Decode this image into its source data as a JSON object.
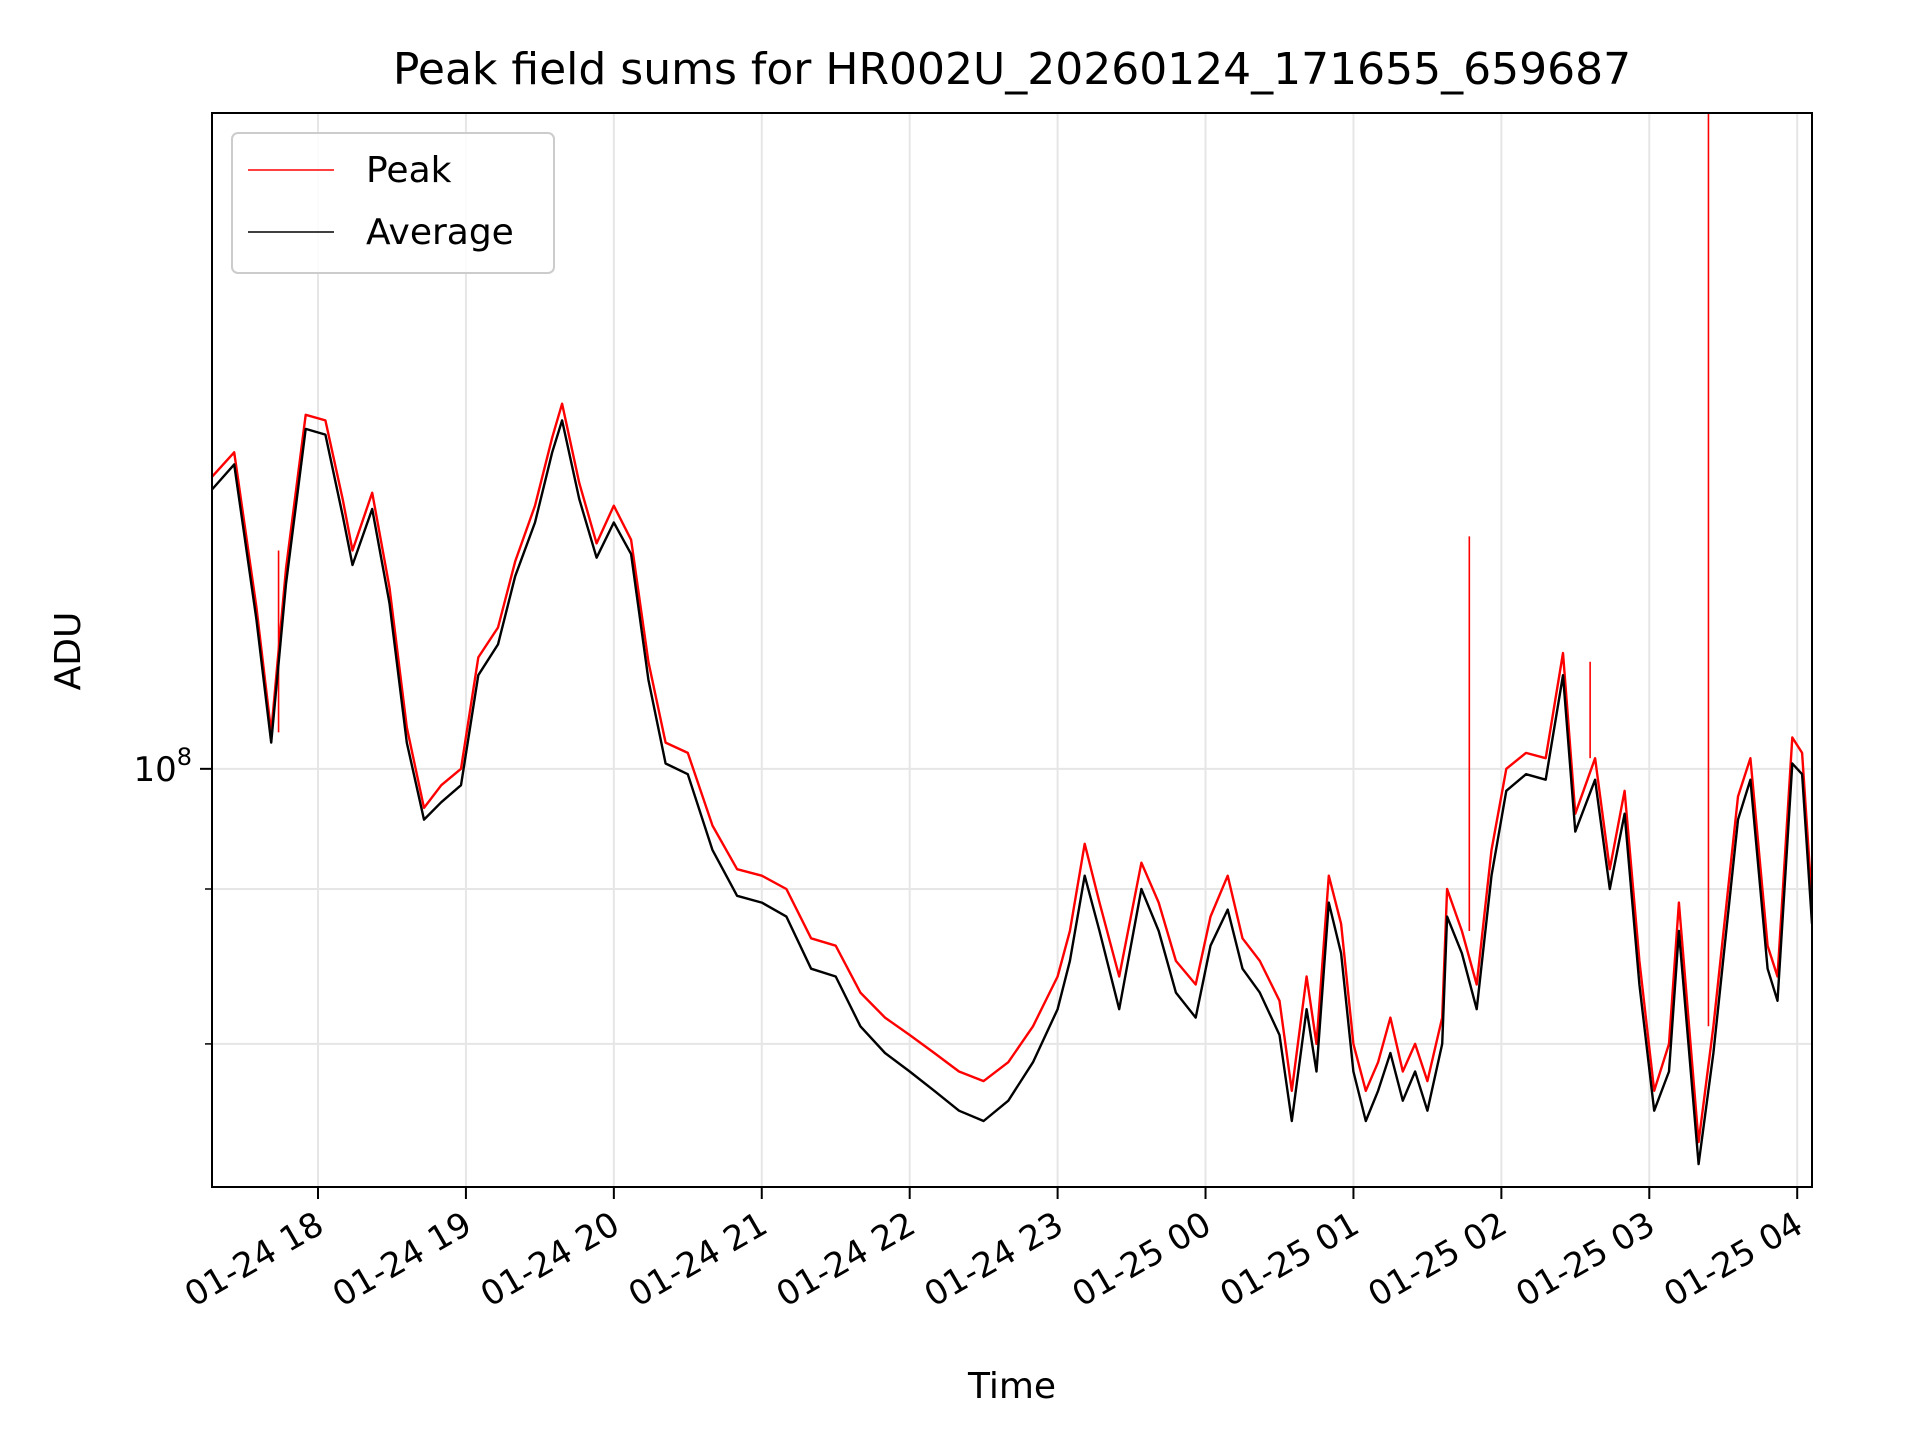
{
  "chart_data": {
    "type": "line",
    "title": "Peak field sums for HR002U_20260124_171655_659687",
    "xlabel": "Time",
    "ylabel": "ADU",
    "y_scale": "log",
    "grid": true,
    "legend_position": "top-left",
    "colors": {
      "peak": "#ff0000",
      "average": "#000000",
      "grid": "#e6e6e6"
    },
    "xlim": [
      "2026-01-24 17:17",
      "2026-01-25 04:06"
    ],
    "ylim": [
      46000000,
      338000000
    ],
    "x_ticks": [
      {
        "t": "2026-01-24 18:00",
        "label": "01-24 18"
      },
      {
        "t": "2026-01-24 19:00",
        "label": "01-24 19"
      },
      {
        "t": "2026-01-24 20:00",
        "label": "01-24 20"
      },
      {
        "t": "2026-01-24 21:00",
        "label": "01-24 21"
      },
      {
        "t": "2026-01-24 22:00",
        "label": "01-24 22"
      },
      {
        "t": "2026-01-24 23:00",
        "label": "01-24 23"
      },
      {
        "t": "2026-01-25 00:00",
        "label": "01-25 00"
      },
      {
        "t": "2026-01-25 01:00",
        "label": "01-25 01"
      },
      {
        "t": "2026-01-25 02:00",
        "label": "01-25 02"
      },
      {
        "t": "2026-01-25 03:00",
        "label": "01-25 03"
      },
      {
        "t": "2026-01-25 04:00",
        "label": "01-25 04"
      }
    ],
    "y_major_ticks": [
      {
        "value": 100000000,
        "label": "10",
        "exponent": "8"
      }
    ],
    "y_minor_ticks": [
      80000000,
      60000000
    ],
    "series": [
      {
        "name": "Peak",
        "color": "#ff0000",
        "points": [
          [
            "2026-01-24 17:17",
            172000000
          ],
          [
            "2026-01-24 17:26",
            180000000
          ],
          [
            "2026-01-24 17:35",
            135000000
          ],
          [
            "2026-01-24 17:41",
            107000000
          ],
          [
            "2026-01-24 17:47",
            145000000
          ],
          [
            "2026-01-24 17:55",
            193000000
          ],
          [
            "2026-01-24 18:03",
            191000000
          ],
          [
            "2026-01-24 18:10",
            165000000
          ],
          [
            "2026-01-24 18:14",
            150000000
          ],
          [
            "2026-01-24 18:22",
            167000000
          ],
          [
            "2026-01-24 18:29",
            140000000
          ],
          [
            "2026-01-24 18:36",
            108000000
          ],
          [
            "2026-01-24 18:43",
            93000000
          ],
          [
            "2026-01-24 18:50",
            97000000
          ],
          [
            "2026-01-24 18:58",
            100000000
          ],
          [
            "2026-01-24 19:05",
            123000000
          ],
          [
            "2026-01-24 19:13",
            130000000
          ],
          [
            "2026-01-24 19:20",
            147000000
          ],
          [
            "2026-01-24 19:28",
            163000000
          ],
          [
            "2026-01-24 19:35",
            185000000
          ],
          [
            "2026-01-24 19:39",
            197000000
          ],
          [
            "2026-01-24 19:46",
            170000000
          ],
          [
            "2026-01-24 19:53",
            152000000
          ],
          [
            "2026-01-24 20:00",
            163000000
          ],
          [
            "2026-01-24 20:07",
            153000000
          ],
          [
            "2026-01-24 20:14",
            122000000
          ],
          [
            "2026-01-24 20:21",
            105000000
          ],
          [
            "2026-01-24 20:30",
            103000000
          ],
          [
            "2026-01-24 20:40",
            90000000
          ],
          [
            "2026-01-24 20:50",
            83000000
          ],
          [
            "2026-01-24 21:00",
            82000000
          ],
          [
            "2026-01-24 21:10",
            80000000
          ],
          [
            "2026-01-24 21:20",
            73000000
          ],
          [
            "2026-01-24 21:30",
            72000000
          ],
          [
            "2026-01-24 21:40",
            66000000
          ],
          [
            "2026-01-24 21:50",
            63000000
          ],
          [
            "2026-01-24 22:00",
            61000000
          ],
          [
            "2026-01-24 22:10",
            59000000
          ],
          [
            "2026-01-24 22:20",
            57000000
          ],
          [
            "2026-01-24 22:30",
            56000000
          ],
          [
            "2026-01-24 22:40",
            58000000
          ],
          [
            "2026-01-24 22:50",
            62000000
          ],
          [
            "2026-01-24 23:00",
            68000000
          ],
          [
            "2026-01-24 23:05",
            74000000
          ],
          [
            "2026-01-24 23:11",
            87000000
          ],
          [
            "2026-01-24 23:17",
            78000000
          ],
          [
            "2026-01-24 23:25",
            68000000
          ],
          [
            "2026-01-24 23:34",
            84000000
          ],
          [
            "2026-01-24 23:41",
            78000000
          ],
          [
            "2026-01-24 23:48",
            70000000
          ],
          [
            "2026-01-24 23:56",
            67000000
          ],
          [
            "2026-01-25 00:02",
            76000000
          ],
          [
            "2026-01-25 00:09",
            82000000
          ],
          [
            "2026-01-25 00:15",
            73000000
          ],
          [
            "2026-01-25 00:22",
            70000000
          ],
          [
            "2026-01-25 00:30",
            65000000
          ],
          [
            "2026-01-25 00:35",
            55000000
          ],
          [
            "2026-01-25 00:41",
            68000000
          ],
          [
            "2026-01-25 00:45",
            60000000
          ],
          [
            "2026-01-25 00:50",
            82000000
          ],
          [
            "2026-01-25 00:55",
            75000000
          ],
          [
            "2026-01-25 01:00",
            60000000
          ],
          [
            "2026-01-25 01:05",
            55000000
          ],
          [
            "2026-01-25 01:10",
            58000000
          ],
          [
            "2026-01-25 01:15",
            63000000
          ],
          [
            "2026-01-25 01:20",
            57000000
          ],
          [
            "2026-01-25 01:25",
            60000000
          ],
          [
            "2026-01-25 01:30",
            56000000
          ],
          [
            "2026-01-25 01:36",
            63000000
          ],
          [
            "2026-01-25 01:38",
            80000000
          ],
          [
            "2026-01-25 01:44",
            74000000
          ],
          [
            "2026-01-25 01:50",
            67000000
          ],
          [
            "2026-01-25 01:56",
            86000000
          ],
          [
            "2026-01-25 02:02",
            100000000
          ],
          [
            "2026-01-25 02:10",
            103000000
          ],
          [
            "2026-01-25 02:18",
            102000000
          ],
          [
            "2026-01-25 02:25",
            124000000
          ],
          [
            "2026-01-25 02:30",
            92000000
          ],
          [
            "2026-01-25 02:38",
            102000000
          ],
          [
            "2026-01-25 02:44",
            83000000
          ],
          [
            "2026-01-25 02:50",
            96000000
          ],
          [
            "2026-01-25 02:56",
            70000000
          ],
          [
            "2026-01-25 03:02",
            55000000
          ],
          [
            "2026-01-25 03:08",
            60000000
          ],
          [
            "2026-01-25 03:12",
            78000000
          ],
          [
            "2026-01-25 03:20",
            50000000
          ],
          [
            "2026-01-25 03:26",
            62000000
          ],
          [
            "2026-01-25 03:36",
            95000000
          ],
          [
            "2026-01-25 03:41",
            102000000
          ],
          [
            "2026-01-25 03:48",
            72000000
          ],
          [
            "2026-01-25 03:52",
            68000000
          ],
          [
            "2026-01-25 03:58",
            106000000
          ],
          [
            "2026-01-25 04:02",
            103000000
          ],
          [
            "2026-01-25 04:06",
            78000000
          ]
        ],
        "spikes": [
          [
            "2026-01-24 17:44",
            150000000
          ],
          [
            "2026-01-25 01:47",
            154000000
          ],
          [
            "2026-01-25 02:36",
            122000000
          ],
          [
            "2026-01-25 03:24",
            338000000
          ]
        ]
      },
      {
        "name": "Average",
        "color": "#000000",
        "points": [
          [
            "2026-01-24 17:17",
            168000000
          ],
          [
            "2026-01-24 17:26",
            176000000
          ],
          [
            "2026-01-24 17:35",
            132000000
          ],
          [
            "2026-01-24 17:41",
            105000000
          ],
          [
            "2026-01-24 17:47",
            141000000
          ],
          [
            "2026-01-24 17:55",
            188000000
          ],
          [
            "2026-01-24 18:03",
            186000000
          ],
          [
            "2026-01-24 18:10",
            160000000
          ],
          [
            "2026-01-24 18:14",
            146000000
          ],
          [
            "2026-01-24 18:22",
            162000000
          ],
          [
            "2026-01-24 18:29",
            136000000
          ],
          [
            "2026-01-24 18:36",
            105000000
          ],
          [
            "2026-01-24 18:43",
            91000000
          ],
          [
            "2026-01-24 18:50",
            94000000
          ],
          [
            "2026-01-24 18:58",
            97000000
          ],
          [
            "2026-01-24 19:05",
            119000000
          ],
          [
            "2026-01-24 19:13",
            126000000
          ],
          [
            "2026-01-24 19:20",
            143000000
          ],
          [
            "2026-01-24 19:28",
            158000000
          ],
          [
            "2026-01-24 19:35",
            180000000
          ],
          [
            "2026-01-24 19:39",
            191000000
          ],
          [
            "2026-01-24 19:46",
            165000000
          ],
          [
            "2026-01-24 19:53",
            148000000
          ],
          [
            "2026-01-24 20:00",
            158000000
          ],
          [
            "2026-01-24 20:07",
            149000000
          ],
          [
            "2026-01-24 20:14",
            118000000
          ],
          [
            "2026-01-24 20:21",
            101000000
          ],
          [
            "2026-01-24 20:30",
            99000000
          ],
          [
            "2026-01-24 20:40",
            86000000
          ],
          [
            "2026-01-24 20:50",
            79000000
          ],
          [
            "2026-01-24 21:00",
            78000000
          ],
          [
            "2026-01-24 21:10",
            76000000
          ],
          [
            "2026-01-24 21:20",
            69000000
          ],
          [
            "2026-01-24 21:30",
            68000000
          ],
          [
            "2026-01-24 21:40",
            62000000
          ],
          [
            "2026-01-24 21:50",
            59000000
          ],
          [
            "2026-01-24 22:00",
            57000000
          ],
          [
            "2026-01-24 22:10",
            55000000
          ],
          [
            "2026-01-24 22:20",
            53000000
          ],
          [
            "2026-01-24 22:30",
            52000000
          ],
          [
            "2026-01-24 22:40",
            54000000
          ],
          [
            "2026-01-24 22:50",
            58000000
          ],
          [
            "2026-01-24 23:00",
            64000000
          ],
          [
            "2026-01-24 23:05",
            70000000
          ],
          [
            "2026-01-24 23:11",
            82000000
          ],
          [
            "2026-01-24 23:17",
            74000000
          ],
          [
            "2026-01-24 23:25",
            64000000
          ],
          [
            "2026-01-24 23:34",
            80000000
          ],
          [
            "2026-01-24 23:41",
            74000000
          ],
          [
            "2026-01-24 23:48",
            66000000
          ],
          [
            "2026-01-24 23:56",
            63000000
          ],
          [
            "2026-01-25 00:02",
            72000000
          ],
          [
            "2026-01-25 00:09",
            77000000
          ],
          [
            "2026-01-25 00:15",
            69000000
          ],
          [
            "2026-01-25 00:22",
            66000000
          ],
          [
            "2026-01-25 00:30",
            61000000
          ],
          [
            "2026-01-25 00:35",
            52000000
          ],
          [
            "2026-01-25 00:41",
            64000000
          ],
          [
            "2026-01-25 00:45",
            57000000
          ],
          [
            "2026-01-25 00:50",
            78000000
          ],
          [
            "2026-01-25 00:55",
            71000000
          ],
          [
            "2026-01-25 01:00",
            57000000
          ],
          [
            "2026-01-25 01:05",
            52000000
          ],
          [
            "2026-01-25 01:10",
            55000000
          ],
          [
            "2026-01-25 01:15",
            59000000
          ],
          [
            "2026-01-25 01:20",
            54000000
          ],
          [
            "2026-01-25 01:25",
            57000000
          ],
          [
            "2026-01-25 01:30",
            53000000
          ],
          [
            "2026-01-25 01:36",
            60000000
          ],
          [
            "2026-01-25 01:38",
            76000000
          ],
          [
            "2026-01-25 01:44",
            71000000
          ],
          [
            "2026-01-25 01:50",
            64000000
          ],
          [
            "2026-01-25 01:56",
            82000000
          ],
          [
            "2026-01-25 02:02",
            96000000
          ],
          [
            "2026-01-25 02:10",
            99000000
          ],
          [
            "2026-01-25 02:18",
            98000000
          ],
          [
            "2026-01-25 02:25",
            119000000
          ],
          [
            "2026-01-25 02:30",
            89000000
          ],
          [
            "2026-01-25 02:38",
            98000000
          ],
          [
            "2026-01-25 02:44",
            80000000
          ],
          [
            "2026-01-25 02:50",
            92000000
          ],
          [
            "2026-01-25 02:56",
            67000000
          ],
          [
            "2026-01-25 03:02",
            53000000
          ],
          [
            "2026-01-25 03:08",
            57000000
          ],
          [
            "2026-01-25 03:12",
            74000000
          ],
          [
            "2026-01-25 03:20",
            48000000
          ],
          [
            "2026-01-25 03:26",
            59000000
          ],
          [
            "2026-01-25 03:36",
            91000000
          ],
          [
            "2026-01-25 03:41",
            98000000
          ],
          [
            "2026-01-25 03:48",
            69000000
          ],
          [
            "2026-01-25 03:52",
            65000000
          ],
          [
            "2026-01-25 03:58",
            101000000
          ],
          [
            "2026-01-25 04:02",
            99000000
          ],
          [
            "2026-01-25 04:06",
            75000000
          ]
        ]
      }
    ]
  }
}
